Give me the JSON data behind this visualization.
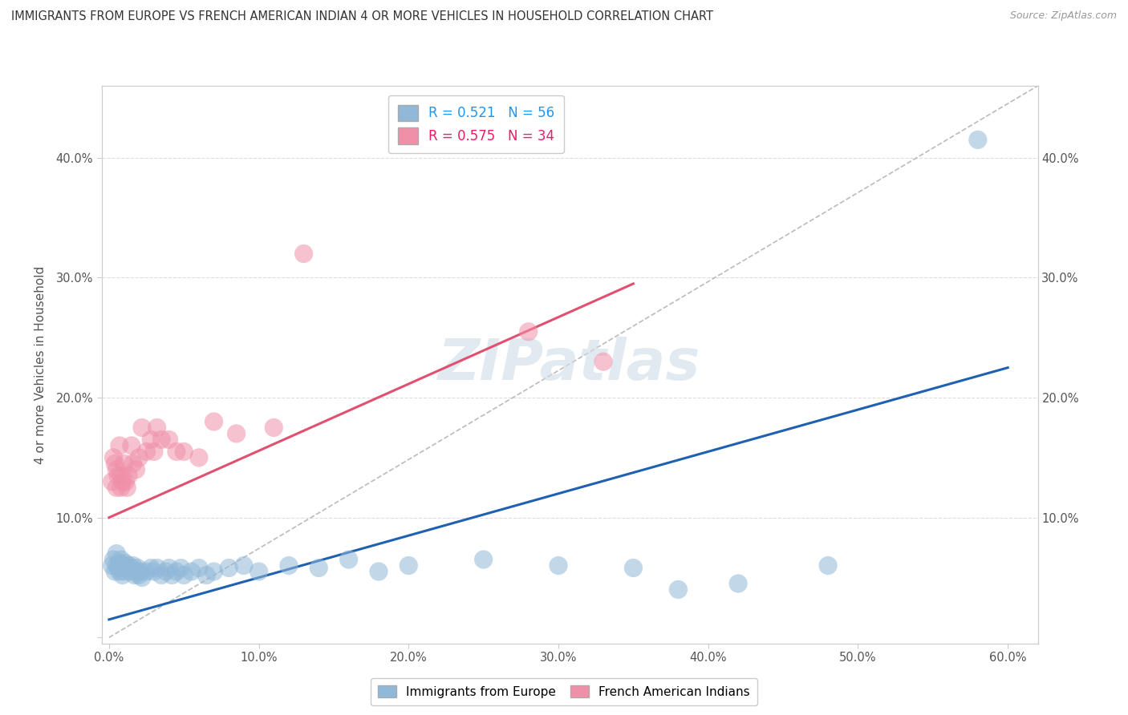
{
  "title": "IMMIGRANTS FROM EUROPE VS FRENCH AMERICAN INDIAN 4 OR MORE VEHICLES IN HOUSEHOLD CORRELATION CHART",
  "source": "Source: ZipAtlas.com",
  "xlabel": "",
  "ylabel": "4 or more Vehicles in Household",
  "xlim": [
    -0.005,
    0.62
  ],
  "ylim": [
    -0.005,
    0.46
  ],
  "xticks": [
    0.0,
    0.1,
    0.2,
    0.3,
    0.4,
    0.5,
    0.6
  ],
  "yticks": [
    0.0,
    0.1,
    0.2,
    0.3,
    0.4
  ],
  "xtick_labels": [
    "0.0%",
    "10.0%",
    "20.0%",
    "30.0%",
    "40.0%",
    "50.0%",
    "60.0%"
  ],
  "ytick_labels": [
    "",
    "10.0%",
    "20.0%",
    "30.0%",
    "40.0%"
  ],
  "right_ytick_labels": [
    "",
    "10.0%",
    "20.0%",
    "30.0%",
    "40.0%"
  ],
  "legend_entries": [
    {
      "label": "R = 0.521   N = 56",
      "color": "#a8c8e8"
    },
    {
      "label": "R = 0.575   N = 34",
      "color": "#f4a0b8"
    }
  ],
  "legend_bottom": [
    "Immigrants from Europe",
    "French American Indians"
  ],
  "blue_color": "#90b8d8",
  "pink_color": "#f090a8",
  "blue_line_color": "#2060b0",
  "pink_line_color": "#e05070",
  "blue_scatter": [
    [
      0.002,
      0.06
    ],
    [
      0.003,
      0.065
    ],
    [
      0.004,
      0.055
    ],
    [
      0.005,
      0.07
    ],
    [
      0.005,
      0.06
    ],
    [
      0.006,
      0.058
    ],
    [
      0.007,
      0.062
    ],
    [
      0.007,
      0.055
    ],
    [
      0.008,
      0.06
    ],
    [
      0.008,
      0.065
    ],
    [
      0.009,
      0.052
    ],
    [
      0.009,
      0.058
    ],
    [
      0.01,
      0.06
    ],
    [
      0.01,
      0.055
    ],
    [
      0.011,
      0.062
    ],
    [
      0.012,
      0.058
    ],
    [
      0.013,
      0.06
    ],
    [
      0.014,
      0.055
    ],
    [
      0.015,
      0.058
    ],
    [
      0.016,
      0.06
    ],
    [
      0.017,
      0.052
    ],
    [
      0.018,
      0.055
    ],
    [
      0.019,
      0.058
    ],
    [
      0.02,
      0.052
    ],
    [
      0.021,
      0.055
    ],
    [
      0.022,
      0.05
    ],
    [
      0.025,
      0.055
    ],
    [
      0.028,
      0.058
    ],
    [
      0.03,
      0.055
    ],
    [
      0.032,
      0.058
    ],
    [
      0.035,
      0.052
    ],
    [
      0.038,
      0.055
    ],
    [
      0.04,
      0.058
    ],
    [
      0.042,
      0.052
    ],
    [
      0.045,
      0.055
    ],
    [
      0.048,
      0.058
    ],
    [
      0.05,
      0.052
    ],
    [
      0.055,
      0.055
    ],
    [
      0.06,
      0.058
    ],
    [
      0.065,
      0.052
    ],
    [
      0.07,
      0.055
    ],
    [
      0.08,
      0.058
    ],
    [
      0.09,
      0.06
    ],
    [
      0.1,
      0.055
    ],
    [
      0.12,
      0.06
    ],
    [
      0.14,
      0.058
    ],
    [
      0.16,
      0.065
    ],
    [
      0.18,
      0.055
    ],
    [
      0.2,
      0.06
    ],
    [
      0.25,
      0.065
    ],
    [
      0.3,
      0.06
    ],
    [
      0.35,
      0.058
    ],
    [
      0.38,
      0.04
    ],
    [
      0.42,
      0.045
    ],
    [
      0.48,
      0.06
    ],
    [
      0.58,
      0.415
    ]
  ],
  "pink_scatter": [
    [
      0.002,
      0.13
    ],
    [
      0.003,
      0.15
    ],
    [
      0.004,
      0.145
    ],
    [
      0.005,
      0.125
    ],
    [
      0.005,
      0.14
    ],
    [
      0.006,
      0.135
    ],
    [
      0.007,
      0.16
    ],
    [
      0.008,
      0.135
    ],
    [
      0.008,
      0.125
    ],
    [
      0.009,
      0.13
    ],
    [
      0.01,
      0.145
    ],
    [
      0.011,
      0.13
    ],
    [
      0.012,
      0.125
    ],
    [
      0.013,
      0.135
    ],
    [
      0.015,
      0.16
    ],
    [
      0.016,
      0.145
    ],
    [
      0.018,
      0.14
    ],
    [
      0.02,
      0.15
    ],
    [
      0.022,
      0.175
    ],
    [
      0.025,
      0.155
    ],
    [
      0.028,
      0.165
    ],
    [
      0.03,
      0.155
    ],
    [
      0.032,
      0.175
    ],
    [
      0.035,
      0.165
    ],
    [
      0.04,
      0.165
    ],
    [
      0.045,
      0.155
    ],
    [
      0.05,
      0.155
    ],
    [
      0.06,
      0.15
    ],
    [
      0.07,
      0.18
    ],
    [
      0.085,
      0.17
    ],
    [
      0.11,
      0.175
    ],
    [
      0.13,
      0.32
    ],
    [
      0.28,
      0.255
    ],
    [
      0.33,
      0.23
    ]
  ],
  "blue_trend_x": [
    0.0,
    0.6
  ],
  "blue_trend_y": [
    0.015,
    0.225
  ],
  "pink_trend_x": [
    0.0,
    0.35
  ],
  "pink_trend_y": [
    0.1,
    0.295
  ],
  "dashed_trend_x": [
    0.0,
    0.62
  ],
  "dashed_trend_y": [
    0.0,
    0.46
  ],
  "watermark": "ZIPatlas",
  "background_color": "#ffffff",
  "grid_color": "#dddddd"
}
